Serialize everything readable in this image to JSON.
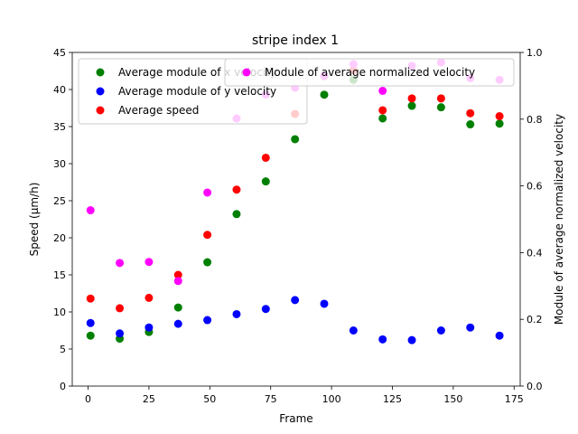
{
  "chart_data": {
    "type": "scatter",
    "title": "stripe index 1",
    "xlabel": "Frame",
    "ylabel": "Speed (μm/h)",
    "ylabel_right": "Module of average normalized velocity",
    "xlim": [
      -6.5,
      177.5
    ],
    "ylim": [
      0,
      45
    ],
    "ylim_right": [
      0,
      1
    ],
    "x_ticks": [
      0,
      25,
      50,
      75,
      100,
      125,
      150,
      175
    ],
    "y_ticks": [
      0,
      5,
      10,
      15,
      20,
      25,
      30,
      35,
      40,
      45
    ],
    "y_ticks_right": [
      0.0,
      0.2,
      0.4,
      0.6,
      0.8,
      1.0
    ],
    "x": [
      1,
      13,
      25,
      37,
      49,
      61,
      73,
      85,
      97,
      109,
      121,
      133,
      145,
      157,
      169
    ],
    "series": [
      {
        "name": "Average module of x velocity",
        "color": "#008000",
        "axis": "left",
        "values": [
          6.8,
          6.4,
          7.3,
          10.6,
          16.7,
          23.2,
          27.6,
          33.3,
          39.3,
          41.3,
          36.1,
          37.8,
          37.6,
          35.3,
          35.4
        ]
      },
      {
        "name": "Average module of y velocity",
        "color": "#0000ff",
        "axis": "left",
        "values": [
          8.5,
          7.1,
          7.9,
          8.4,
          8.9,
          9.7,
          10.4,
          11.6,
          11.1,
          7.5,
          6.3,
          6.2,
          7.5,
          7.9,
          6.8
        ]
      },
      {
        "name": "Average speed",
        "color": "#ff0000",
        "axis": "left",
        "values": [
          11.8,
          10.5,
          11.9,
          15.0,
          20.4,
          26.5,
          30.8,
          36.7,
          41.8,
          42.6,
          37.2,
          38.8,
          38.8,
          36.8,
          36.4
        ]
      },
      {
        "name": "Module of average normalized velocity",
        "color": "#ff00ff",
        "axis": "right",
        "values": [
          0.527,
          0.369,
          0.372,
          0.315,
          0.58,
          0.802,
          0.874,
          0.894,
          0.93,
          0.965,
          0.885,
          0.96,
          0.97,
          0.923,
          0.918
        ]
      }
    ],
    "legend_left_placement": "upper-left",
    "legend_right_placement": "upper-right",
    "grid": false
  }
}
